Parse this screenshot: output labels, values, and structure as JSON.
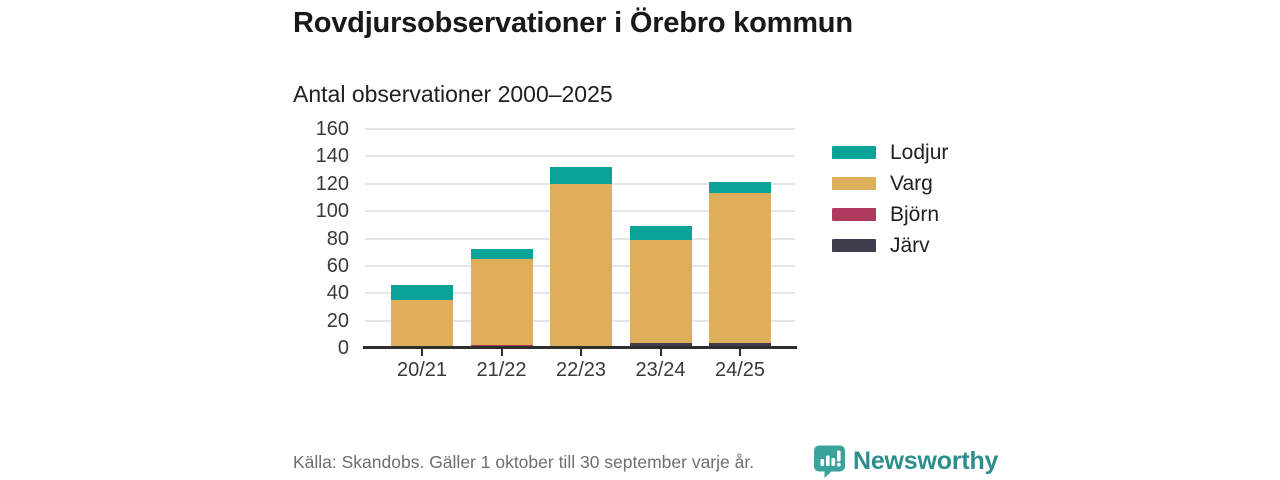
{
  "title": "Rovdjursobservationer i Örebro kommun",
  "subtitle": "Antal observationer 2000–2025",
  "legend": [
    {
      "key": "lodjur",
      "label": "Lodjur",
      "color": "#0ba29a"
    },
    {
      "key": "varg",
      "label": "Varg",
      "color": "#dfae5b"
    },
    {
      "key": "bjorn",
      "label": "Björn",
      "color": "#ae3a5e"
    },
    {
      "key": "jarv",
      "label": "Järv",
      "color": "#3f3d4d"
    }
  ],
  "chart_data": {
    "type": "bar",
    "stacked": true,
    "title": "Antal observationer 2000–2025",
    "categories": [
      "20/21",
      "21/22",
      "22/23",
      "23/24",
      "24/25"
    ],
    "series": [
      {
        "key": "jarv",
        "name": "Järv",
        "color": "#3f3d4d",
        "values": [
          0,
          0,
          1,
          4,
          4
        ]
      },
      {
        "key": "bjorn",
        "name": "Björn",
        "color": "#ae3a5e",
        "values": [
          1,
          2,
          0,
          0,
          0
        ]
      },
      {
        "key": "varg",
        "name": "Varg",
        "color": "#dfae5b",
        "values": [
          34,
          63,
          119,
          75,
          109
        ]
      },
      {
        "key": "lodjur",
        "name": "Lodjur",
        "color": "#0ba29a",
        "values": [
          11,
          7,
          12,
          10,
          8
        ]
      }
    ],
    "totals": [
      46,
      72,
      132,
      89,
      121
    ],
    "stack_order": "bottom-to-top: Järv, Björn, Varg, Lodjur",
    "xlabel": "",
    "ylabel": "",
    "ylim": [
      0,
      160
    ],
    "yticks": [
      0,
      20,
      40,
      60,
      80,
      100,
      120,
      140,
      160
    ],
    "grid": true,
    "legend_position": "right"
  },
  "footer": {
    "source": "Källa: Skandobs. Gäller 1 oktober till 30 september varje år.",
    "brand": "Newsworthy",
    "brand_color": "#2d8e8c",
    "brand_icon": "newsworthy-speech-bubble-bar-chart-icon",
    "brand_icon_color": "#3aa39c"
  },
  "colors": {
    "background": "#ffffff",
    "axis": "#2e2e2e",
    "grid": "#e6e6e6",
    "title_text": "#191919",
    "tick_text": "#3a3a3a",
    "muted_text": "#6e6e6e"
  }
}
